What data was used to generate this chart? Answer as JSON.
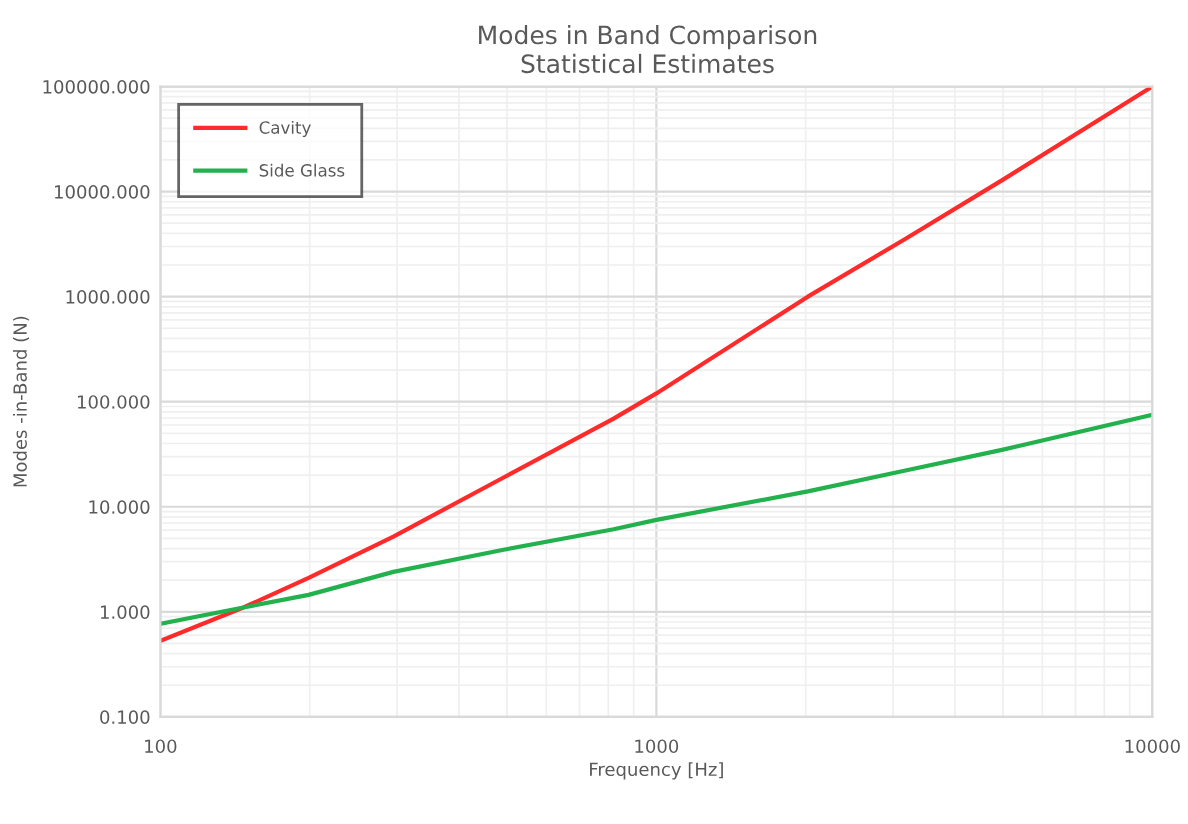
{
  "chart_data": {
    "type": "line",
    "title": "Modes in Band Comparison",
    "subtitle": "Statistical Estimates",
    "xlabel": "Frequency [Hz]",
    "ylabel": "Modes -in-Band (N)",
    "log": "xy",
    "grid": true,
    "legend": "top left",
    "line_style": "solid",
    "marker": "none",
    "xlim": [
      100,
      10000
    ],
    "xticks": [
      100,
      1000,
      10000
    ],
    "ylim": [
      0.1,
      100000
    ],
    "yticks": [
      {
        "value": 0.1,
        "label": "0.100"
      },
      {
        "value": 1,
        "label": "1.000"
      },
      {
        "value": 10,
        "label": "10.000"
      },
      {
        "value": 100,
        "label": "100.000"
      },
      {
        "value": 1000,
        "label": "1000.000"
      },
      {
        "value": 10000,
        "label": "10000.000"
      },
      {
        "value": 100000,
        "label": "100000.000"
      }
    ],
    "x": [
      100,
      147,
      199,
      295,
      492,
      820,
      1000,
      2020,
      3162,
      5000,
      10000
    ],
    "series": [
      {
        "name": "Cavity",
        "color": "#ff2a2a",
        "values": [
          0.53,
          1.1,
          2.1,
          5.2,
          19,
          69,
          120,
          1000,
          3500,
          13000,
          100000
        ]
      },
      {
        "name": "Side Glass",
        "color": "#22b14c",
        "values": [
          0.77,
          1.1,
          1.45,
          2.4,
          3.9,
          6.1,
          7.5,
          14,
          22,
          35,
          75
        ]
      }
    ]
  }
}
